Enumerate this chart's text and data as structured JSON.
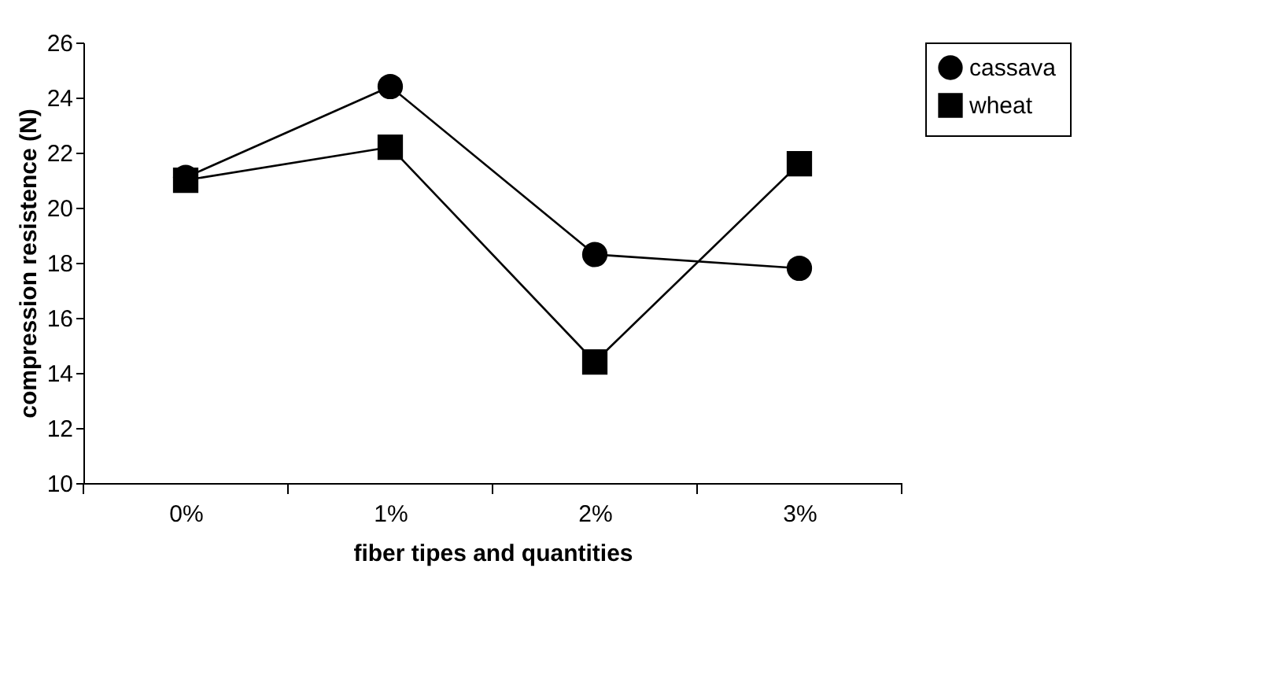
{
  "chart_data": {
    "type": "line",
    "xlabel": "fiber tipes and quantities",
    "ylabel": "compression resistence (N)",
    "categories": [
      "0%",
      "1%",
      "2%",
      "3%"
    ],
    "series": [
      {
        "name": "cassava",
        "color": "#000000",
        "marker": "circle",
        "values": [
          21.1,
          24.4,
          18.3,
          17.8
        ]
      },
      {
        "name": "wheat",
        "color": "#000000",
        "marker": "square",
        "values": [
          21.0,
          22.2,
          14.4,
          21.6
        ]
      }
    ],
    "ylim": [
      10,
      26
    ],
    "yticks": [
      10,
      12,
      14,
      16,
      18,
      20,
      22,
      24,
      26
    ],
    "grid": false,
    "legend": "right",
    "line_style": "solid"
  }
}
